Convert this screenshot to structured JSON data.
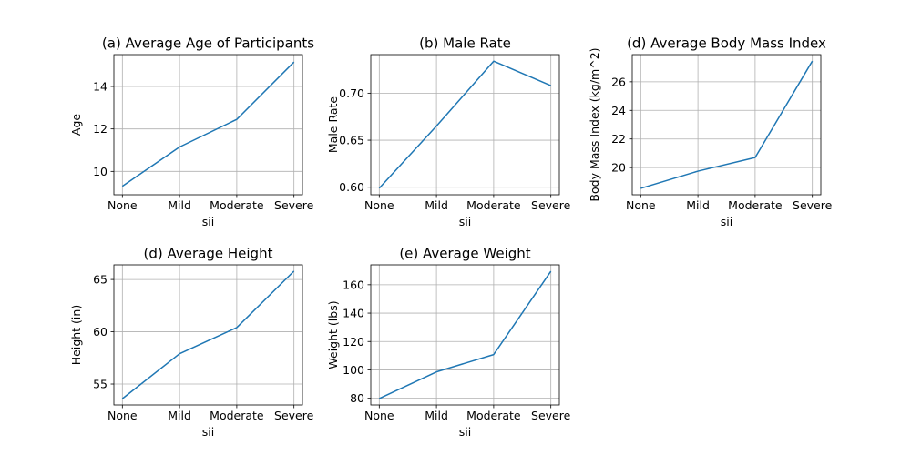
{
  "chart_data": [
    {
      "type": "line",
      "title": "(a) Average Age of Participants",
      "xlabel": "sii",
      "ylabel": "Age",
      "categories": [
        "None",
        "Mild",
        "Moderate",
        "Severe"
      ],
      "values": [
        9.3,
        11.15,
        12.45,
        15.15
      ],
      "ylim": [
        8.9,
        15.5
      ],
      "yticks": [
        10,
        12,
        14
      ],
      "grid": true,
      "color": "#1f77b4"
    },
    {
      "type": "line",
      "title": "(b) Male Rate",
      "xlabel": "sii",
      "ylabel": "Male Rate",
      "categories": [
        "None",
        "Mild",
        "Moderate",
        "Severe"
      ],
      "values": [
        0.599,
        0.665,
        0.734,
        0.708
      ],
      "ylim": [
        0.592,
        0.741
      ],
      "yticks": [
        0.6,
        0.65,
        0.7
      ],
      "ytick_decimals": 2,
      "grid": true,
      "color": "#1f77b4"
    },
    {
      "type": "line",
      "title": "(d) Average Body Mass Index",
      "xlabel": "sii",
      "ylabel": "Body Mass Index (kg/m^2)",
      "categories": [
        "None",
        "Mild",
        "Moderate",
        "Severe"
      ],
      "values": [
        18.55,
        19.75,
        20.7,
        27.45
      ],
      "ylim": [
        18.1,
        27.9
      ],
      "yticks": [
        20,
        22,
        24,
        26
      ],
      "grid": true,
      "color": "#1f77b4"
    },
    {
      "type": "line",
      "title": "(d) Average Height",
      "xlabel": "sii",
      "ylabel": "Height (in)",
      "categories": [
        "None",
        "Mild",
        "Moderate",
        "Severe"
      ],
      "values": [
        53.6,
        57.9,
        60.4,
        65.8
      ],
      "ylim": [
        53.0,
        66.4
      ],
      "yticks": [
        55,
        60,
        65
      ],
      "grid": true,
      "color": "#1f77b4"
    },
    {
      "type": "line",
      "title": "(e) Average Weight",
      "xlabel": "sii",
      "ylabel": "Weight (lbs)",
      "categories": [
        "None",
        "Mild",
        "Moderate",
        "Severe"
      ],
      "values": [
        79.8,
        98.6,
        110.8,
        169.5
      ],
      "ylim": [
        75.3,
        174.0
      ],
      "yticks": [
        80,
        100,
        120,
        140,
        160
      ],
      "grid": true,
      "color": "#1f77b4"
    }
  ]
}
